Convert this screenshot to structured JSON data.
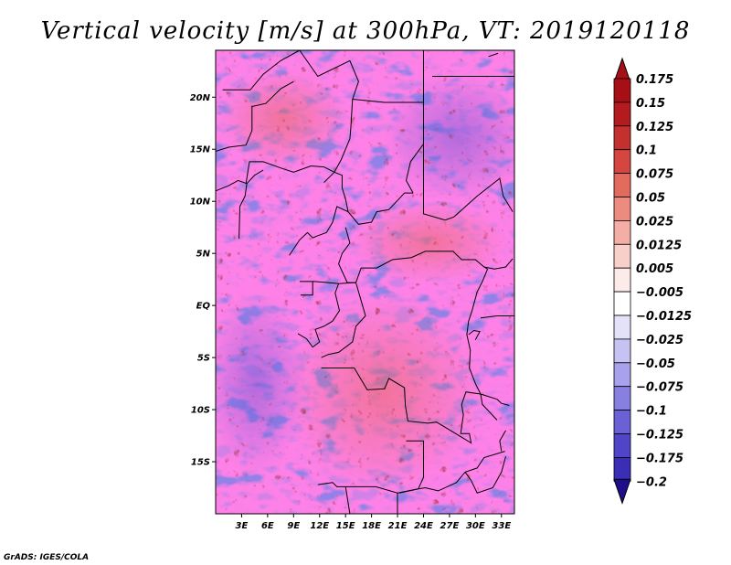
{
  "title": "Vertical velocity [m/s] at 300hPa, VT: 2019120118",
  "credit": "GrADS: IGES/COLA",
  "map": {
    "lon_range": [
      0,
      34.5
    ],
    "lat_range": [
      -20,
      24.5
    ],
    "lat_ticks": [
      {
        "value": 20,
        "label": "20N"
      },
      {
        "value": 15,
        "label": "15N"
      },
      {
        "value": 10,
        "label": "10N"
      },
      {
        "value": 5,
        "label": "5N"
      },
      {
        "value": 0,
        "label": "EQ"
      },
      {
        "value": -5,
        "label": "5S"
      },
      {
        "value": -10,
        "label": "10S"
      },
      {
        "value": -15,
        "label": "15S"
      }
    ],
    "lon_ticks": [
      {
        "value": 3,
        "label": "3E"
      },
      {
        "value": 6,
        "label": "6E"
      },
      {
        "value": 9,
        "label": "9E"
      },
      {
        "value": 12,
        "label": "12E"
      },
      {
        "value": 15,
        "label": "15E"
      },
      {
        "value": 18,
        "label": "18E"
      },
      {
        "value": 21,
        "label": "21E"
      },
      {
        "value": 24,
        "label": "24E"
      },
      {
        "value": 27,
        "label": "27E"
      },
      {
        "value": 30,
        "label": "30E"
      },
      {
        "value": 33,
        "label": "33E"
      }
    ],
    "borders": [
      [
        [
          0.8,
          20.7
        ],
        [
          4,
          20.7
        ],
        [
          5.5,
          22.2
        ],
        [
          7.5,
          23.5
        ],
        [
          9.7,
          24.5
        ]
      ],
      [
        [
          9.7,
          24.5
        ],
        [
          11.8,
          22
        ],
        [
          15.5,
          23.5
        ],
        [
          16.5,
          21.5
        ],
        [
          15.8,
          19.8
        ],
        [
          15.6,
          17
        ],
        [
          15.5,
          16
        ],
        [
          14.5,
          14
        ],
        [
          13.7,
          12.8
        ],
        [
          12.5,
          11.8
        ]
      ],
      [
        [
          15.8,
          19.8
        ],
        [
          19.5,
          19.5
        ],
        [
          24,
          19.5
        ],
        [
          24,
          20
        ]
      ],
      [
        [
          24,
          24.5
        ],
        [
          24,
          19.5
        ],
        [
          24,
          15.5
        ],
        [
          22.5,
          13.8
        ],
        [
          22,
          12
        ],
        [
          22.8,
          10.8
        ]
      ],
      [
        [
          24,
          15.5
        ],
        [
          24,
          8.8
        ],
        [
          26.5,
          8.2
        ],
        [
          27.5,
          8.5
        ],
        [
          30.2,
          10.5
        ],
        [
          32.8,
          12.2
        ],
        [
          33.2,
          10.5
        ],
        [
          34.3,
          9
        ]
      ],
      [
        [
          25,
          22
        ],
        [
          34.5,
          22
        ]
      ],
      [
        [
          31.5,
          23.9
        ],
        [
          32.6,
          24.2
        ]
      ],
      [
        [
          0,
          14.8
        ],
        [
          1.5,
          15.2
        ],
        [
          3.5,
          15.4
        ],
        [
          4.2,
          16.8
        ],
        [
          4.2,
          19.1
        ],
        [
          5.8,
          19.4
        ],
        [
          7.5,
          20.8
        ],
        [
          9,
          21.5
        ]
      ],
      [
        [
          3.5,
          11.7
        ],
        [
          3.9,
          13.8
        ],
        [
          5.5,
          13.8
        ],
        [
          7.5,
          13.2
        ],
        [
          9,
          12.8
        ],
        [
          11,
          13.4
        ],
        [
          12.5,
          13.3
        ],
        [
          13.7,
          12.8
        ]
      ],
      [
        [
          0,
          11
        ],
        [
          1.5,
          11.5
        ],
        [
          2.6,
          12
        ],
        [
          3.6,
          11.7
        ],
        [
          3.4,
          10.5
        ],
        [
          2.8,
          9.5
        ],
        [
          2.7,
          6.4
        ]
      ],
      [
        [
          3.6,
          11.7
        ],
        [
          4.5,
          12.5
        ],
        [
          5.5,
          13
        ]
      ],
      [
        [
          13.7,
          12.8
        ],
        [
          14.6,
          12.5
        ],
        [
          14.6,
          11.3
        ],
        [
          15,
          10.2
        ],
        [
          15.3,
          9
        ],
        [
          14,
          9.5
        ],
        [
          13.5,
          8
        ],
        [
          12.8,
          7
        ],
        [
          11.8,
          6.7
        ],
        [
          11.2,
          6.5
        ],
        [
          10.6,
          7
        ],
        [
          9.7,
          6.3
        ],
        [
          8.5,
          4.8
        ]
      ],
      [
        [
          15.3,
          9
        ],
        [
          16.5,
          7.8
        ],
        [
          18,
          8
        ],
        [
          18.6,
          9
        ],
        [
          20,
          9.2
        ],
        [
          21.8,
          10.8
        ],
        [
          22.8,
          10.8
        ]
      ],
      [
        [
          15,
          7.5
        ],
        [
          15.5,
          6
        ],
        [
          14.6,
          5
        ],
        [
          14.2,
          4
        ],
        [
          15.2,
          2.2
        ],
        [
          16.2,
          2.2
        ]
      ],
      [
        [
          9.7,
          2.3
        ],
        [
          11.4,
          2.3
        ],
        [
          13,
          2.2
        ],
        [
          14.2,
          2.1
        ],
        [
          16.2,
          2.2
        ],
        [
          16.8,
          3.6
        ],
        [
          18.6,
          3.6
        ],
        [
          20.4,
          4.4
        ],
        [
          22.6,
          4.6
        ],
        [
          24.2,
          5.2
        ],
        [
          25.3,
          5.2
        ],
        [
          27.4,
          5.2
        ],
        [
          28.4,
          4.4
        ],
        [
          30,
          4.4
        ],
        [
          31,
          3.7
        ],
        [
          31.4,
          3.5
        ]
      ],
      [
        [
          11.2,
          2.3
        ],
        [
          11.2,
          1
        ],
        [
          9.8,
          1
        ]
      ],
      [
        [
          14.2,
          2.1
        ],
        [
          13.8,
          1.2
        ],
        [
          14.3,
          -0.5
        ],
        [
          13.5,
          -1.5
        ],
        [
          12.5,
          -2
        ],
        [
          11.5,
          -2.3
        ],
        [
          12,
          -3.5
        ],
        [
          11.2,
          -4
        ],
        [
          10.5,
          -3.2
        ],
        [
          9.5,
          -2.7
        ]
      ],
      [
        [
          16.2,
          2.2
        ],
        [
          17.3,
          -1
        ],
        [
          16.2,
          -2
        ],
        [
          15.8,
          -3.5
        ],
        [
          15,
          -4
        ],
        [
          14.2,
          -4.5
        ],
        [
          13,
          -4.7
        ],
        [
          12.2,
          -5
        ]
      ],
      [
        [
          31.4,
          3.5
        ],
        [
          30.8,
          2.3
        ],
        [
          30.2,
          1.3
        ],
        [
          29.6,
          -0.5
        ],
        [
          29.2,
          -1.5
        ],
        [
          29,
          -2.8
        ],
        [
          29.4,
          -4.3
        ],
        [
          29.3,
          -6
        ],
        [
          30,
          -7.5
        ],
        [
          30.6,
          -8.5
        ],
        [
          28.9,
          -8.3
        ],
        [
          28.4,
          -9.5
        ],
        [
          28.6,
          -10.5
        ],
        [
          28.3,
          -12.3
        ],
        [
          29.3,
          -12.3
        ],
        [
          29.5,
          -13.2
        ],
        [
          27.5,
          -12.2
        ],
        [
          25.5,
          -11.2
        ],
        [
          24.5,
          -11.3
        ],
        [
          22.2,
          -11.1
        ],
        [
          21.9,
          -9.6
        ],
        [
          21.8,
          -7.9
        ],
        [
          20,
          -7
        ],
        [
          19.5,
          -8
        ],
        [
          17.5,
          -8.1
        ],
        [
          16,
          -6
        ],
        [
          13,
          -6
        ],
        [
          12.2,
          -6
        ]
      ],
      [
        [
          31,
          3.7
        ],
        [
          32.2,
          3.5
        ],
        [
          33.5,
          3.7
        ],
        [
          34.3,
          4.5
        ]
      ],
      [
        [
          30.6,
          -1.2
        ],
        [
          32.5,
          -1
        ],
        [
          34,
          -1
        ],
        [
          34.5,
          -1
        ]
      ],
      [
        [
          30,
          -3.3
        ],
        [
          30.5,
          -2.5
        ],
        [
          29.8,
          -2.4
        ],
        [
          29.2,
          -2.8
        ]
      ],
      [
        [
          33.9,
          -9.6
        ],
        [
          33,
          -9.4
        ],
        [
          32.5,
          -9
        ],
        [
          30.6,
          -8.5
        ],
        [
          30.8,
          -9.5
        ],
        [
          32.5,
          -11
        ]
      ],
      [
        [
          33,
          -14
        ],
        [
          32.8,
          -13
        ],
        [
          33.5,
          -12
        ]
      ],
      [
        [
          33.4,
          -14
        ],
        [
          31,
          -14.6
        ],
        [
          30.2,
          -15.6
        ],
        [
          28.8,
          -16
        ],
        [
          27.8,
          -17
        ],
        [
          25.7,
          -17.8
        ],
        [
          24.2,
          -17.5
        ],
        [
          23.4,
          -17.6
        ],
        [
          21.2,
          -18
        ]
      ],
      [
        [
          22,
          -13
        ],
        [
          24,
          -13
        ],
        [
          24,
          -16.5
        ],
        [
          23.4,
          -17.6
        ]
      ],
      [
        [
          11.8,
          -17.2
        ],
        [
          13.5,
          -17
        ],
        [
          14,
          -17.4
        ],
        [
          18.5,
          -17.4
        ],
        [
          21,
          -18
        ],
        [
          23.4,
          -17.6
        ]
      ],
      [
        [
          28.8,
          -16
        ],
        [
          29.5,
          -16.8
        ],
        [
          30.2,
          -18
        ],
        [
          32,
          -17.5
        ],
        [
          33,
          -16
        ],
        [
          33.5,
          -14.5
        ]
      ],
      [
        [
          21,
          -18
        ],
        [
          21,
          -20
        ]
      ],
      [
        [
          15,
          -17.4
        ],
        [
          15.5,
          -20
        ]
      ]
    ]
  },
  "colorbar": {
    "levels": [
      {
        "label": "0.175",
        "color": "#A50F15"
      },
      {
        "label": "0.15",
        "color": "#B31B1F"
      },
      {
        "label": "0.125",
        "color": "#C4302E"
      },
      {
        "label": "0.1",
        "color": "#D4463F"
      },
      {
        "label": "0.075",
        "color": "#E26B5E"
      },
      {
        "label": "0.05",
        "color": "#EC8C80"
      },
      {
        "label": "0.025",
        "color": "#F4AEA5"
      },
      {
        "label": "0.0125",
        "color": "#F9CFCA"
      },
      {
        "label": "0.005",
        "color": "#FDEBE9"
      },
      {
        "label": "−0.005",
        "color": "#FFFFFF"
      },
      {
        "label": "−0.0125",
        "color": "#E4E2F9"
      },
      {
        "label": "−0.025",
        "color": "#C6C3F2"
      },
      {
        "label": "−0.05",
        "color": "#A7A2EB"
      },
      {
        "label": "−0.075",
        "color": "#8780E1"
      },
      {
        "label": "−0.1",
        "color": "#6A61D6"
      },
      {
        "label": "−0.125",
        "color": "#5045C8"
      },
      {
        "label": "−0.175",
        "color": "#3A2DB6"
      },
      {
        "label": "−0.2",
        "color": "#2918A2"
      }
    ],
    "top_cap_color": "#A50F15",
    "bottom_cap_color": "#1E0E8C"
  }
}
